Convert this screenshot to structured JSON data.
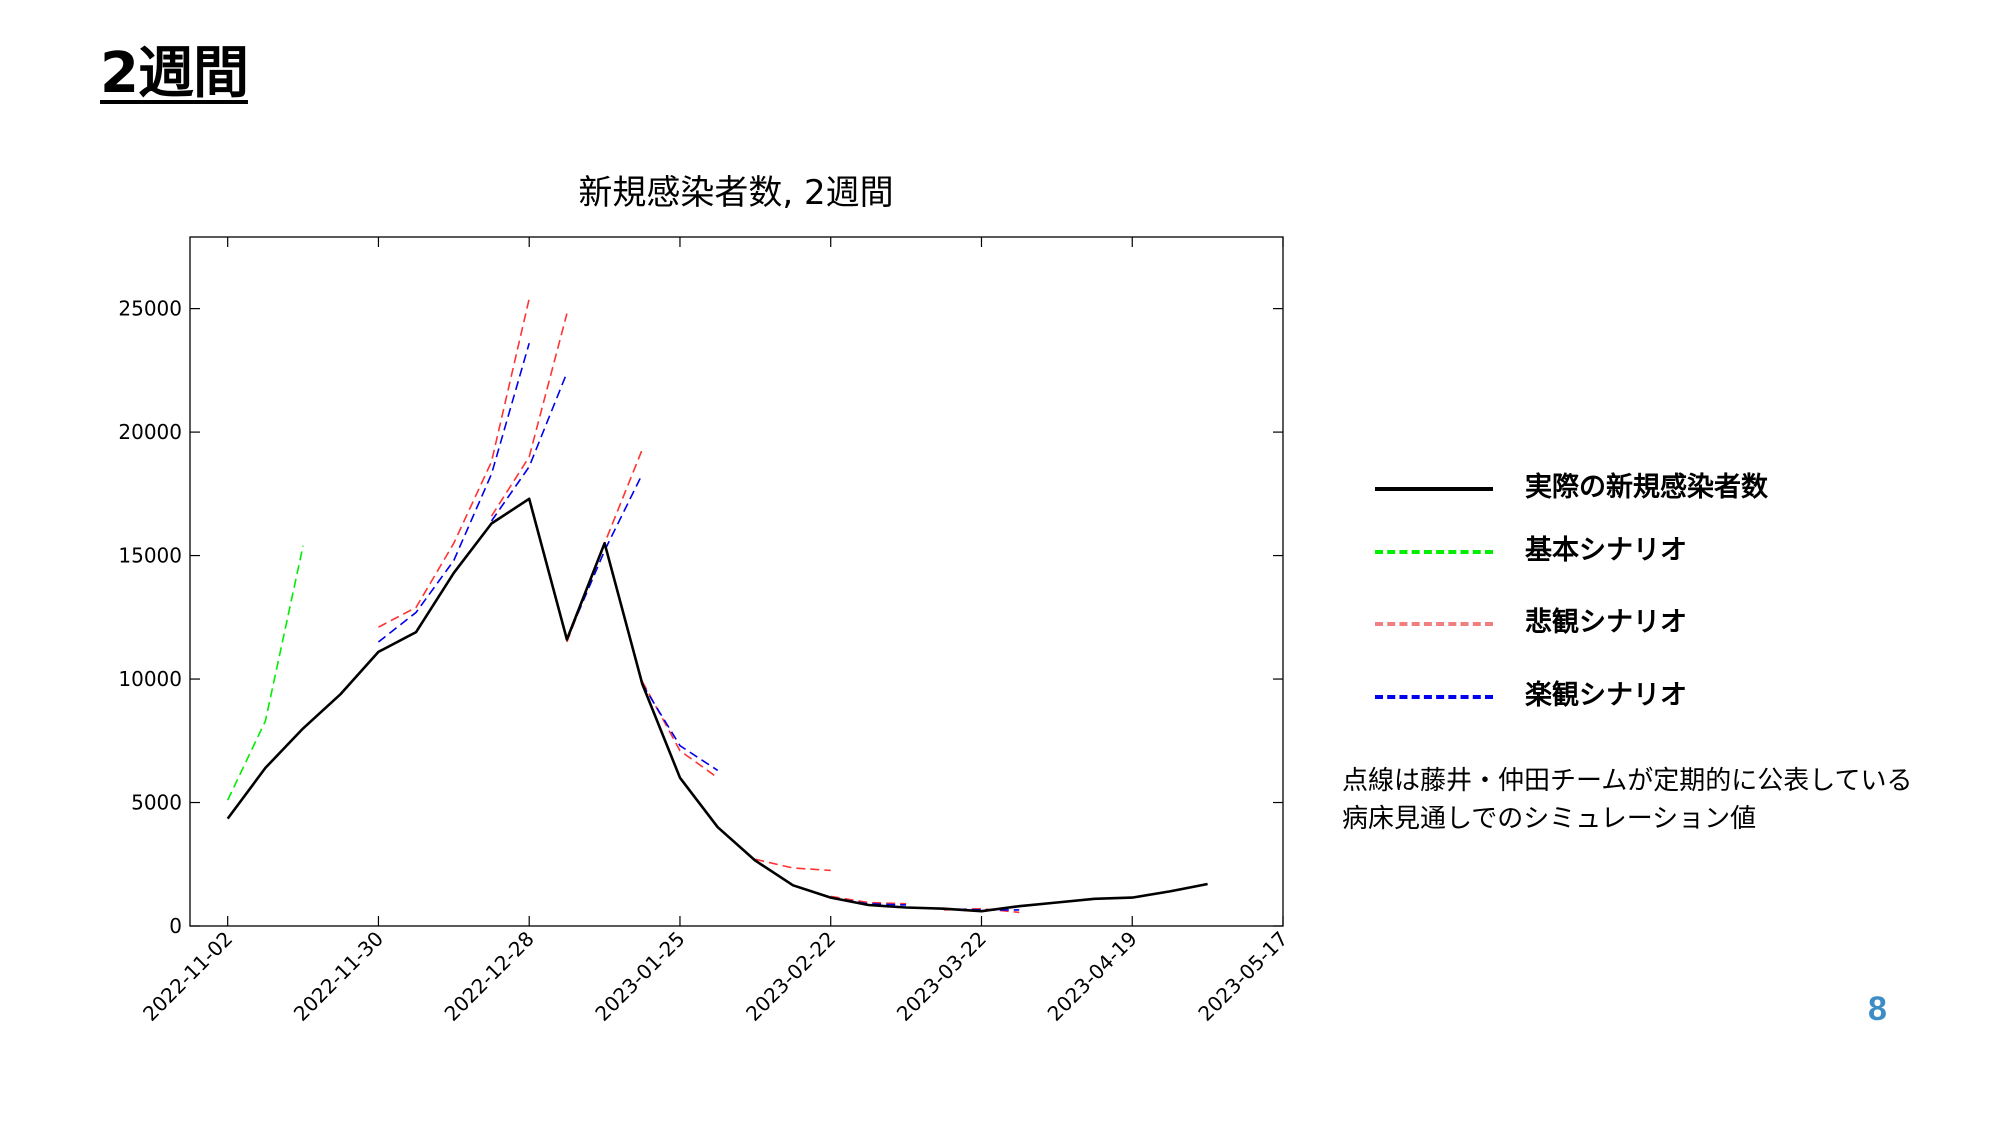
{
  "slide": {
    "heading": "2週間",
    "page_number": "8",
    "note": [
      "点線は藤井・仲田チームが定期的に公表している",
      "病床見通しでのシミュレーション値"
    ]
  },
  "legend": [
    {
      "label": "実際の新規感染者数",
      "color": "#000000",
      "style": "solid"
    },
    {
      "label": "基本シナリオ",
      "color": "#00ee00",
      "style": "dashed"
    },
    {
      "label": "悲観シナリオ",
      "color": "#f08080",
      "style": "dashed"
    },
    {
      "label": "楽観シナリオ",
      "color": "#0000ee",
      "style": "dashed"
    }
  ],
  "chart_data": {
    "type": "line",
    "title": "新規感染者数, 2週間",
    "xlabel": "",
    "ylabel": "",
    "x_ticks": [
      "2022-11-02",
      "2022-11-30",
      "2022-12-28",
      "2023-01-25",
      "2023-02-22",
      "2023-03-22",
      "2023-04-19",
      "2023-05-17"
    ],
    "y_ticks": [
      0,
      5000,
      10000,
      15000,
      20000,
      25000
    ],
    "xlim": [
      "2022-10-26",
      "2023-05-17"
    ],
    "ylim": [
      0,
      27900
    ],
    "grid": false,
    "series": [
      {
        "name": "実際の新規感染者数",
        "color": "#000000",
        "style": "solid",
        "width": 2.6,
        "points": [
          [
            "2022-11-02",
            4350
          ],
          [
            "2022-11-09",
            6400
          ],
          [
            "2022-11-16",
            8000
          ],
          [
            "2022-11-23",
            9400
          ],
          [
            "2022-11-30",
            11100
          ],
          [
            "2022-12-07",
            11900
          ],
          [
            "2022-12-14",
            14300
          ],
          [
            "2022-12-21",
            16300
          ],
          [
            "2022-12-28",
            17300
          ],
          [
            "2023-01-04",
            11600
          ],
          [
            "2023-01-11",
            15500
          ],
          [
            "2023-01-18",
            9800
          ],
          [
            "2023-01-25",
            6000
          ],
          [
            "2023-02-01",
            4000
          ],
          [
            "2023-02-08",
            2650
          ],
          [
            "2023-02-15",
            1650
          ],
          [
            "2023-02-22",
            1150
          ],
          [
            "2023-03-01",
            850
          ],
          [
            "2023-03-08",
            750
          ],
          [
            "2023-03-15",
            700
          ],
          [
            "2023-03-22",
            600
          ],
          [
            "2023-03-29",
            800
          ],
          [
            "2023-04-05",
            950
          ],
          [
            "2023-04-12",
            1100
          ],
          [
            "2023-04-19",
            1150
          ],
          [
            "2023-04-26",
            1400
          ],
          [
            "2023-05-03",
            1700
          ]
        ]
      },
      {
        "name": "基本シナリオ",
        "color": "#00ee00",
        "style": "dashed",
        "width": 1.6,
        "points": [
          [
            "2022-11-02",
            5100
          ],
          [
            "2022-11-09",
            8300
          ],
          [
            "2022-11-16",
            15400
          ]
        ]
      },
      {
        "name": "悲観シナリオ",
        "color": "#ff3333",
        "style": "dashed",
        "width": 1.6,
        "points": [
          [
            "2022-11-30",
            12100
          ],
          [
            "2022-12-07",
            12900
          ],
          [
            "2022-12-14",
            15500
          ],
          [
            "2022-12-21",
            18800
          ],
          [
            "2022-12-28",
            25400
          ]
        ]
      },
      {
        "name": "楽観シナリオ",
        "color": "#0000ee",
        "style": "dashed",
        "width": 1.6,
        "points": [
          [
            "2022-11-30",
            11500
          ],
          [
            "2022-12-07",
            12700
          ],
          [
            "2022-12-14",
            14800
          ],
          [
            "2022-12-21",
            18300
          ],
          [
            "2022-12-28",
            23600
          ]
        ]
      },
      {
        "name": "悲観シナリオ",
        "color": "#ff3333",
        "style": "dashed",
        "width": 1.6,
        "points": [
          [
            "2022-12-21",
            16600
          ],
          [
            "2022-12-28",
            19000
          ],
          [
            "2023-01-04",
            24800
          ]
        ]
      },
      {
        "name": "楽観シナリオ",
        "color": "#0000ee",
        "style": "dashed",
        "width": 1.6,
        "points": [
          [
            "2022-12-21",
            16400
          ],
          [
            "2022-12-28",
            18600
          ],
          [
            "2023-01-04",
            22400
          ]
        ]
      },
      {
        "name": "悲観シナリオ",
        "color": "#ff3333",
        "style": "dashed",
        "width": 1.6,
        "points": [
          [
            "2023-01-04",
            11500
          ],
          [
            "2023-01-11",
            15500
          ],
          [
            "2023-01-18",
            19300
          ]
        ]
      },
      {
        "name": "楽観シナリオ",
        "color": "#0000ee",
        "style": "dashed",
        "width": 1.6,
        "points": [
          [
            "2023-01-04",
            11600
          ],
          [
            "2023-01-11",
            15200
          ],
          [
            "2023-01-18",
            18300
          ]
        ]
      },
      {
        "name": "悲観シナリオ",
        "color": "#ff3333",
        "style": "dashed",
        "width": 1.6,
        "points": [
          [
            "2023-01-18",
            9900
          ],
          [
            "2023-01-25",
            7100
          ],
          [
            "2023-02-01",
            6000
          ]
        ]
      },
      {
        "name": "楽観シナリオ",
        "color": "#0000ee",
        "style": "dashed",
        "width": 1.6,
        "points": [
          [
            "2023-01-18",
            9800
          ],
          [
            "2023-01-25",
            7300
          ],
          [
            "2023-02-01",
            6300
          ]
        ]
      },
      {
        "name": "悲観シナリオ",
        "color": "#ff3333",
        "style": "dashed",
        "width": 1.6,
        "points": [
          [
            "2023-02-08",
            2700
          ],
          [
            "2023-02-15",
            2350
          ],
          [
            "2023-02-22",
            2250
          ]
        ]
      },
      {
        "name": "悲観シナリオ",
        "color": "#ff3333",
        "style": "dashed",
        "width": 1.6,
        "points": [
          [
            "2023-02-22",
            1200
          ],
          [
            "2023-03-01",
            950
          ],
          [
            "2023-03-08",
            900
          ]
        ]
      },
      {
        "name": "楽観シナリオ",
        "color": "#0000ee",
        "style": "dashed",
        "width": 1.6,
        "points": [
          [
            "2023-02-22",
            1150
          ],
          [
            "2023-03-01",
            900
          ],
          [
            "2023-03-08",
            850
          ]
        ]
      },
      {
        "name": "悲観シナリオ",
        "color": "#ff3333",
        "style": "dashed",
        "width": 1.6,
        "points": [
          [
            "2023-03-15",
            650
          ],
          [
            "2023-03-22",
            700
          ],
          [
            "2023-03-29",
            550
          ]
        ]
      },
      {
        "name": "楽観シナリオ",
        "color": "#0000ee",
        "style": "dashed",
        "width": 1.6,
        "points": [
          [
            "2023-03-15",
            700
          ],
          [
            "2023-03-22",
            650
          ],
          [
            "2023-03-29",
            650
          ]
        ]
      }
    ]
  }
}
